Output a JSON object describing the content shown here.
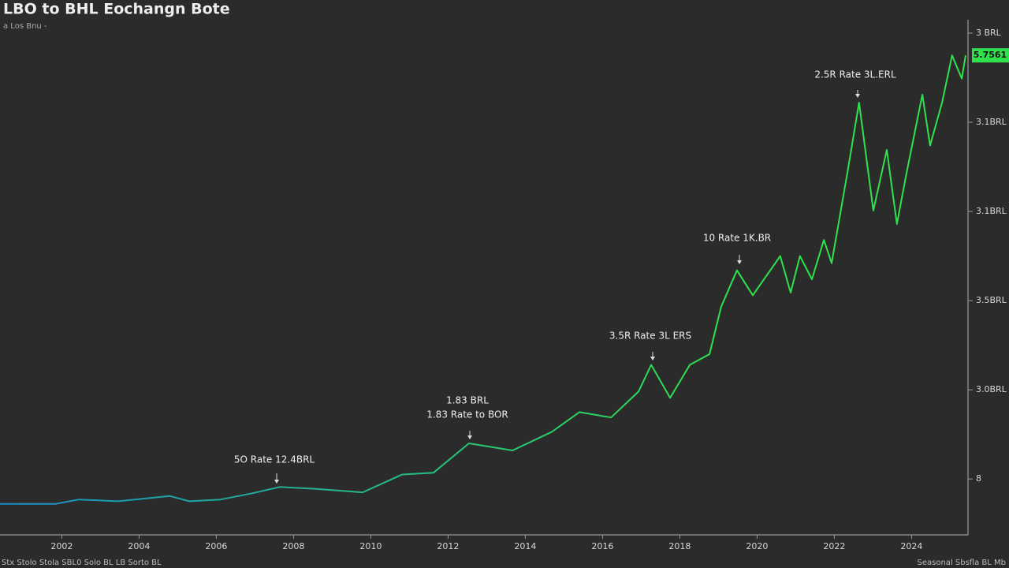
{
  "chart_data": {
    "type": "line",
    "title": "LBO to BHL Eochangn Bote",
    "subtitle": "a Los Bnu  -",
    "x": [
      2000.4,
      2001.83,
      2002.44,
      2003.46,
      2004.79,
      2005.3,
      2006.11,
      2006.93,
      2007.64,
      2008.56,
      2009.79,
      2010.81,
      2011.62,
      2012.54,
      2013.67,
      2014.69,
      2015.4,
      2016.22,
      2016.93,
      2017.26,
      2017.75,
      2018.26,
      2018.77,
      2019.07,
      2019.48,
      2019.89,
      2020.6,
      2020.87,
      2021.11,
      2021.42,
      2021.73,
      2021.93,
      2022.34,
      2022.64,
      2023.01,
      2023.36,
      2023.62,
      2023.87,
      2024.28,
      2024.48,
      2024.79,
      2025.05,
      2025.3,
      2025.4
    ],
    "values": [
      0.72,
      0.72,
      0.77,
      0.75,
      0.81,
      0.75,
      0.77,
      0.84,
      0.91,
      0.89,
      0.85,
      1.05,
      1.07,
      1.4,
      1.32,
      1.53,
      1.75,
      1.69,
      1.98,
      2.28,
      1.91,
      2.28,
      2.4,
      2.93,
      3.34,
      3.06,
      3.5,
      3.09,
      3.5,
      3.24,
      3.68,
      3.42,
      4.44,
      5.22,
      4.01,
      4.69,
      3.86,
      4.43,
      5.31,
      4.74,
      5.22,
      5.75,
      5.49,
      5.75
    ],
    "gradient": [
      "#1b8ec6",
      "#2fe24c"
    ],
    "xlim": [
      2000.4,
      2025.4
    ],
    "xticks": [
      2002,
      2004,
      2006,
      2008,
      2010,
      2012,
      2014,
      2016,
      2018,
      2020,
      2022,
      2024
    ],
    "ylim": [
      0.4,
      6.15
    ],
    "yticks": [
      {
        "value": 1,
        "label": "8"
      },
      {
        "value": 2,
        "label": "3.0BRL"
      },
      {
        "value": 3,
        "label": "3.5BRL"
      },
      {
        "value": 4,
        "label": "3.1BRL"
      },
      {
        "value": 5,
        "label": "3.1BRL"
      },
      {
        "value": 6,
        "label": "3 BRL"
      }
    ],
    "current_label": "5.7561",
    "annotations": [
      {
        "lines": [
          "5O Rate 12.4BRL"
        ]
      },
      {
        "lines": [
          "1.83 BRL",
          "1.83 Rate to BOR"
        ]
      },
      {
        "lines": [
          "3.5R Rate 3L ERS"
        ]
      },
      {
        "lines": [
          "10 Rate 1K.BR"
        ]
      },
      {
        "lines": [
          "2.5R Rate 3L.ERL"
        ]
      }
    ],
    "footer_left": "Stx Stolo Stola SBL0 Solo BL LB Sorto BL",
    "footer_right": "Seasonal Sbsfla BL Mb"
  }
}
